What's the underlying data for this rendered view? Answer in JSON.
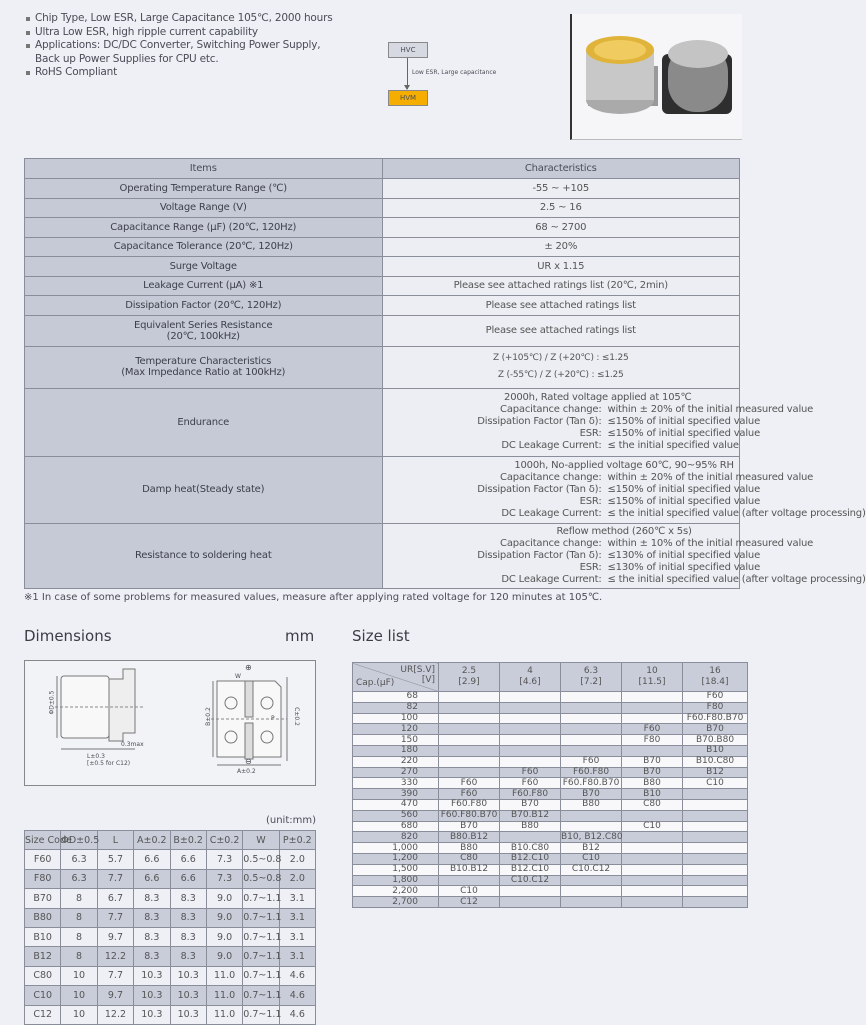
{
  "bullets": [
    "Chip Type, Low ESR, Large Capacitance 105℃, 2000 hours",
    "Ultra Low ESR, high ripple current capability",
    "Applications: DC/DC Converter, Switching Power Supply,",
    "Back up Power Supplies for CPU etc.",
    "RoHS Compliant"
  ],
  "flow": {
    "from": "HVC",
    "to": "HVM",
    "arrow_label": "Low ESR, Large capacitance",
    "to_color": "#f5ae00",
    "from_color": "#d6d8e2"
  },
  "char": {
    "header": [
      "Items",
      "Characteristics"
    ],
    "rows": [
      [
        "Operating Temperature Range (℃)",
        "-55 ~ +105"
      ],
      [
        "Voltage Range (V)",
        "2.5 ~ 16"
      ],
      [
        "Capacitance Range (μF) (20℃, 120Hz)",
        "68 ~ 2700"
      ],
      [
        "Capacitance Tolerance (20℃, 120Hz)",
        "± 20%"
      ],
      [
        "Surge Voltage",
        "UR x 1.15"
      ],
      [
        "Leakage Current (μA) ※1",
        "Please see attached ratings list (20℃, 2min)"
      ],
      [
        "Dissipation Factor (20℃, 120Hz)",
        "Please see attached ratings list"
      ]
    ],
    "esr": {
      "label1": "Equivalent Series Resistance",
      "label2": "(20℃, 100kHz)",
      "value": "Please see attached ratings list"
    },
    "temp": {
      "label1": "Temperature Characteristics",
      "label2": "(Max Impedance Ratio at 100kHz)",
      "v1": "Z (+105℃) / Z (+20℃) : ≤1.25",
      "v2": "Z (-55℃) / Z (+20℃) : ≤1.25"
    },
    "tests": [
      {
        "label": "Endurance",
        "title": "2000h, Rated voltage applied at 105℃",
        "items": [
          [
            "Capacitance change:",
            "within ± 20% of the initial measured value"
          ],
          [
            "Dissipation Factor (Tan δ):",
            "≤150% of initial specified value"
          ],
          [
            "ESR:",
            "≤150% of initial specified value"
          ],
          [
            "DC Leakage Current:",
            "≤ the initial specified value"
          ]
        ]
      },
      {
        "label": "Damp heat(Steady state)",
        "title": "1000h, No-applied voltage 60℃, 90~95% RH",
        "items": [
          [
            "Capacitance change:",
            "within ± 20% of the initial measured value"
          ],
          [
            "Dissipation Factor (Tan δ):",
            "≤150% of initial specified value"
          ],
          [
            "ESR:",
            "≤150% of initial specified value"
          ],
          [
            "DC Leakage Current:",
            "≤ the initial specified value (after voltage processing)"
          ]
        ]
      },
      {
        "label": "Resistance to soldering heat",
        "title": "Reflow method (260℃ x 5s)",
        "items": [
          [
            "Capacitance change:",
            "within ± 10% of the initial measured value"
          ],
          [
            "Dissipation Factor (Tan δ):",
            "≤130% of initial specified value"
          ],
          [
            "ESR:",
            "≤130% of initial specified value"
          ],
          [
            "DC Leakage Current:",
            "≤ the initial specified value (after voltage processing)"
          ]
        ]
      }
    ]
  },
  "footnote": "※1 In case of some problems for measured values, measure after applying rated voltage for 120 minutes at 105℃.",
  "dimensions": {
    "title": "Dimensions",
    "unit": "mm",
    "unit_note": "(unit:mm)",
    "diagram": {
      "d": "ΦD±0.5",
      "l": "L±0.3",
      "l2": "[±0.5 for C12)",
      "max": "0.3max",
      "a": "A±0.2",
      "b": "B±0.2",
      "c": "C±0.2",
      "w": "W",
      "p": "P",
      "plus": "⊕",
      "minus": "⊖"
    },
    "headers": [
      "Size Code",
      "ΦD±0.5",
      "L",
      "A±0.2",
      "B±0.2",
      "C±0.2",
      "W",
      "P±0.2"
    ],
    "rows": [
      [
        "F60",
        "6.3",
        "5.7",
        "6.6",
        "6.6",
        "7.3",
        "0.5~0.8",
        "2.0"
      ],
      [
        "F80",
        "6.3",
        "7.7",
        "6.6",
        "6.6",
        "7.3",
        "0.5~0.8",
        "2.0"
      ],
      [
        "B70",
        "8",
        "6.7",
        "8.3",
        "8.3",
        "9.0",
        "0.7~1.1",
        "3.1"
      ],
      [
        "B80",
        "8",
        "7.7",
        "8.3",
        "8.3",
        "9.0",
        "0.7~1.1",
        "3.1"
      ],
      [
        "B10",
        "8",
        "9.7",
        "8.3",
        "8.3",
        "9.0",
        "0.7~1.1",
        "3.1"
      ],
      [
        "B12",
        "8",
        "12.2",
        "8.3",
        "8.3",
        "9.0",
        "0.7~1.1",
        "3.1"
      ],
      [
        "C80",
        "10",
        "7.7",
        "10.3",
        "10.3",
        "11.0",
        "0.7~1.1",
        "4.6"
      ],
      [
        "C10",
        "10",
        "9.7",
        "10.3",
        "10.3",
        "11.0",
        "0.7~1.1",
        "4.6"
      ],
      [
        "C12",
        "10",
        "12.2",
        "10.3",
        "10.3",
        "11.0",
        "0.7~1.1",
        "4.6"
      ]
    ]
  },
  "size_list": {
    "title": "Size list",
    "corner_top": "UR[S.V]",
    "corner_unit": "[V]",
    "corner_left": "Cap.(μF)",
    "voltages": [
      [
        "2.5",
        "[2.9]"
      ],
      [
        "4",
        "[4.6]"
      ],
      [
        "6.3",
        "[7.2]"
      ],
      [
        "10",
        "[11.5]"
      ],
      [
        "16",
        "[18.4]"
      ]
    ],
    "rows": [
      [
        "68",
        "",
        "",
        "",
        "",
        "F60"
      ],
      [
        "82",
        "",
        "",
        "",
        "",
        "F80"
      ],
      [
        "100",
        "",
        "",
        "",
        "",
        "F60.F80.B70"
      ],
      [
        "120",
        "",
        "",
        "",
        "F60",
        "B70"
      ],
      [
        "150",
        "",
        "",
        "",
        "F80",
        "B70.B80"
      ],
      [
        "180",
        "",
        "",
        "",
        "",
        "B10"
      ],
      [
        "220",
        "",
        "",
        "F60",
        "B70",
        "B10.C80"
      ],
      [
        "270",
        "",
        "F60",
        "F60.F80",
        "B70",
        "B12"
      ],
      [
        "330",
        "F60",
        "F60",
        "F60.F80.B70",
        "B80",
        "C10"
      ],
      [
        "390",
        "F60",
        "F60.F80",
        "B70",
        "B10",
        ""
      ],
      [
        "470",
        "F60.F80",
        "B70",
        "B80",
        "C80",
        ""
      ],
      [
        "560",
        "F60.F80.B70",
        "B70.B12",
        "",
        "",
        ""
      ],
      [
        "680",
        "B70",
        "B80",
        "",
        "C10",
        ""
      ],
      [
        "820",
        "B80.B12",
        "",
        "B10, B12.C80",
        "",
        ""
      ],
      [
        "1,000",
        "B80",
        "B10.C80",
        "B12",
        "",
        ""
      ],
      [
        "1,200",
        "C80",
        "B12.C10",
        "C10",
        "",
        ""
      ],
      [
        "1,500",
        "B10.B12",
        "B12.C10",
        "C10.C12",
        "",
        ""
      ],
      [
        "1,800",
        "",
        "C10.C12",
        "",
        "",
        ""
      ],
      [
        "2,200",
        "C10",
        "",
        "",
        "",
        ""
      ],
      [
        "2,700",
        "C12",
        "",
        "",
        "",
        ""
      ]
    ]
  }
}
